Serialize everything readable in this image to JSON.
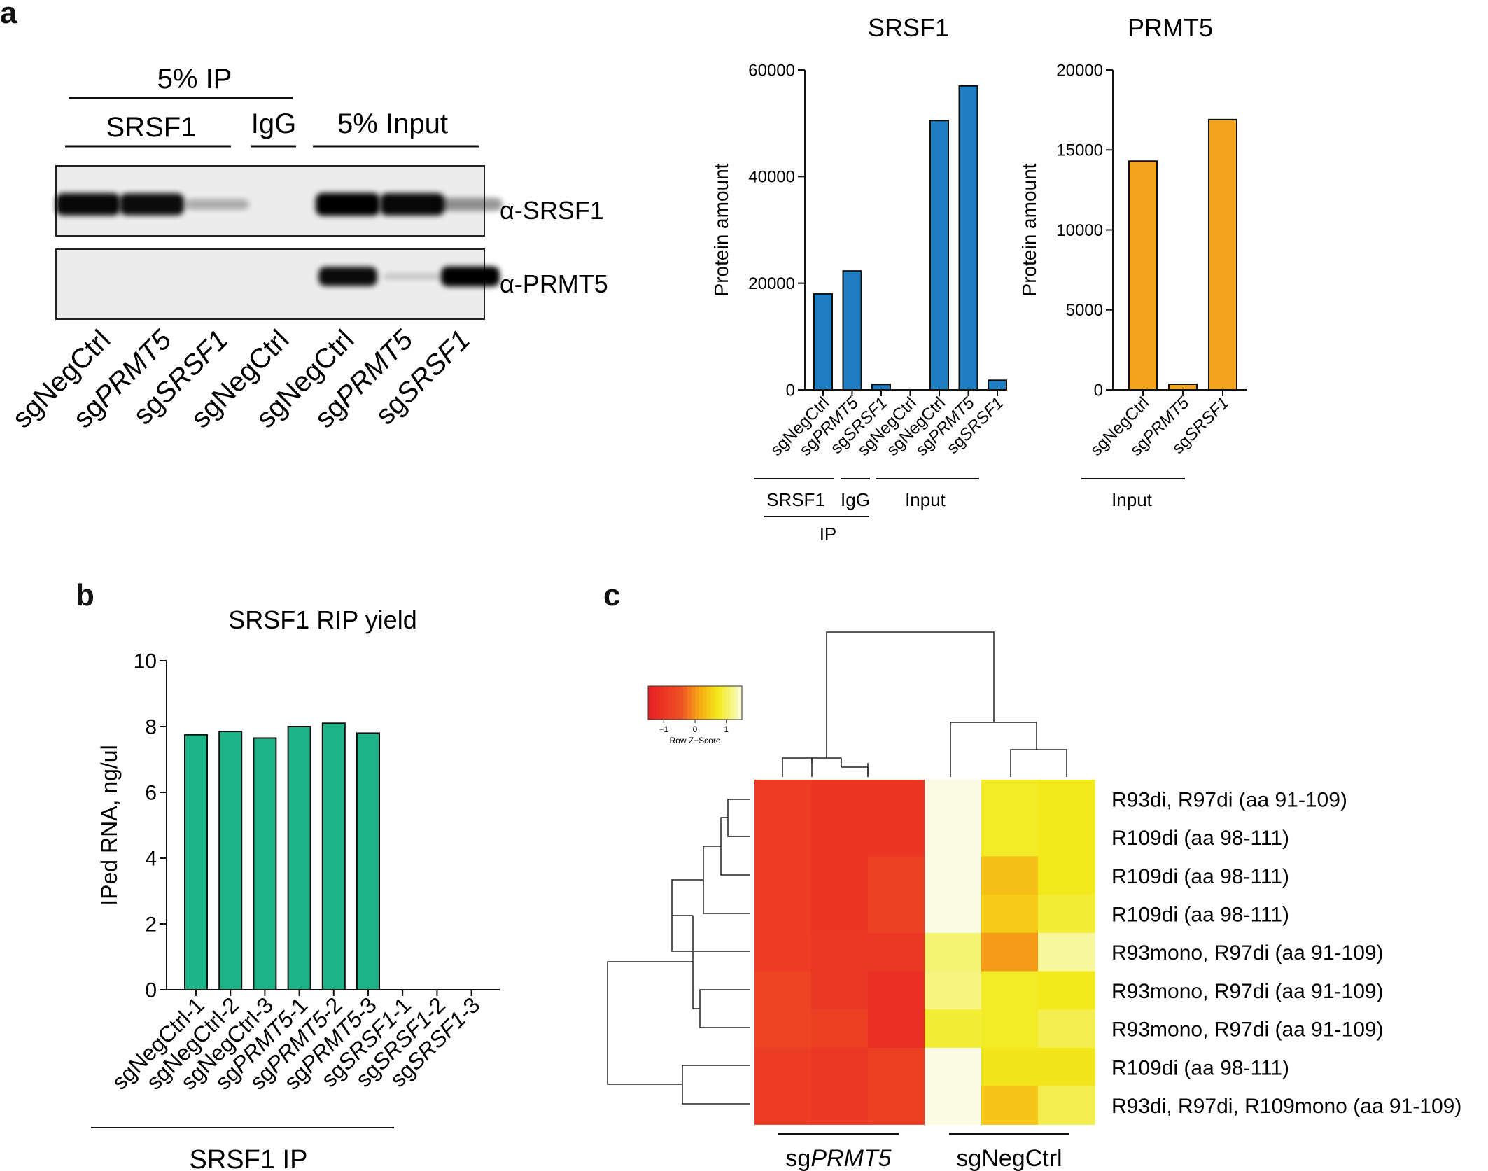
{
  "panels": {
    "a": "a",
    "b": "b",
    "c": "c"
  },
  "blot": {
    "group_ip": "5% IP",
    "group_srsf1": "SRSF1",
    "group_igg": "IgG",
    "group_input": "5% Input",
    "row_labels": [
      "α-SRSF1",
      "α-PRMT5"
    ],
    "lanes": [
      {
        "prefix": "sg",
        "gene": "NegCtrl",
        "italic": false
      },
      {
        "prefix": "sg",
        "gene": "PRMT5",
        "italic": true
      },
      {
        "prefix": "sg",
        "gene": "SRSF1",
        "italic": true
      },
      {
        "prefix": "sg",
        "gene": "NegCtrl",
        "italic": false
      },
      {
        "prefix": "sg",
        "gene": "NegCtrl",
        "italic": false
      },
      {
        "prefix": "sg",
        "gene": "PRMT5",
        "italic": true
      },
      {
        "prefix": "sg",
        "gene": "SRSF1",
        "italic": true
      }
    ],
    "srsf1_band_intensity": [
      0.92,
      0.9,
      0.22,
      0.0,
      0.95,
      0.92,
      0.35
    ],
    "prmt5_band_intensity": [
      0.0,
      0.0,
      0.0,
      0.0,
      0.9,
      0.12,
      0.95
    ]
  },
  "chart_data": [
    {
      "id": "srsf1_quant",
      "type": "bar",
      "title": "SRSF1",
      "ylabel": "Protein amount",
      "ylim": [
        0,
        60000
      ],
      "yticks": [
        0,
        20000,
        40000,
        60000
      ],
      "color": "#1f7ec2",
      "categories": [
        {
          "prefix": "sg",
          "gene": "NegCtrl",
          "italic": false
        },
        {
          "prefix": "sg",
          "gene": "PRMT5",
          "italic": true
        },
        {
          "prefix": "sg",
          "gene": "SRSF1",
          "italic": true
        },
        {
          "prefix": "sg",
          "gene": "NegCtrl",
          "italic": false
        },
        {
          "prefix": "sg",
          "gene": "NegCtrl",
          "italic": false
        },
        {
          "prefix": "sg",
          "gene": "PRMT5",
          "italic": true
        },
        {
          "prefix": "sg",
          "gene": "SRSF1",
          "italic": true
        }
      ],
      "values": [
        18000,
        22300,
        1000,
        0,
        50500,
        57000,
        1800
      ],
      "groups": [
        "SRSF1",
        "IgG",
        "Input",
        "IP"
      ]
    },
    {
      "id": "prmt5_quant",
      "type": "bar",
      "title": "PRMT5",
      "ylabel": "Protein amount",
      "ylim": [
        0,
        20000
      ],
      "yticks": [
        0,
        5000,
        10000,
        15000,
        20000
      ],
      "color": "#f4a31f",
      "categories": [
        {
          "prefix": "sg",
          "gene": "NegCtrl",
          "italic": false
        },
        {
          "prefix": "sg",
          "gene": "PRMT5",
          "italic": true
        },
        {
          "prefix": "sg",
          "gene": "SRSF1",
          "italic": true
        }
      ],
      "values": [
        14300,
        350,
        16900
      ],
      "groups": [
        "Input"
      ]
    },
    {
      "id": "rip_yield",
      "type": "bar",
      "title": "SRSF1 RIP yield",
      "ylabel": "IPed RNA, ng/ul",
      "ylim": [
        0,
        10
      ],
      "yticks": [
        0,
        2,
        4,
        6,
        8,
        10
      ],
      "color": "#1db386",
      "categories": [
        {
          "prefix": "sg",
          "gene": "NegCtrl",
          "italic": false,
          "suffix": "-1"
        },
        {
          "prefix": "sg",
          "gene": "NegCtrl",
          "italic": false,
          "suffix": "-2"
        },
        {
          "prefix": "sg",
          "gene": "NegCtrl",
          "italic": false,
          "suffix": "-3"
        },
        {
          "prefix": "sg",
          "gene": "PRMT5",
          "italic": true,
          "suffix": "-1"
        },
        {
          "prefix": "sg",
          "gene": "PRMT5",
          "italic": true,
          "suffix": "-2"
        },
        {
          "prefix": "sg",
          "gene": "PRMT5",
          "italic": true,
          "suffix": "-3"
        },
        {
          "prefix": "sg",
          "gene": "SRSF1",
          "italic": true,
          "suffix": "-1"
        },
        {
          "prefix": "sg",
          "gene": "SRSF1",
          "italic": true,
          "suffix": "-2"
        },
        {
          "prefix": "sg",
          "gene": "SRSF1",
          "italic": true,
          "suffix": "-3"
        }
      ],
      "values": [
        7.75,
        7.85,
        7.65,
        8.0,
        8.1,
        7.8,
        0,
        0,
        0
      ],
      "group": "SRSF1 IP"
    },
    {
      "id": "heatmap",
      "type": "heatmap",
      "legend_title": "Row Z−Score",
      "legend_ticks": [
        "−1",
        "0",
        "1"
      ],
      "legend_range": [
        -1.5,
        1.5
      ],
      "rows": [
        "R93di, R97di (aa 91-109)",
        "R109di (aa 98-111)",
        "R109di (aa 98-111)",
        "R109di (aa 98-111)",
        "R93mono, R97di (aa 91-109)",
        "R93mono, R97di (aa 91-109)",
        "R93mono, R97di (aa 91-109)",
        "R109di (aa 98-111)",
        "R93di, R97di, R109mono (aa 91-109)"
      ],
      "column_groups": [
        {
          "prefix": "sg",
          "gene": "PRMT5",
          "italic": true
        },
        {
          "prefix": "sg",
          "gene": "NegCtrl",
          "italic": false
        }
      ],
      "values": [
        [
          -0.85,
          -1.0,
          -1.0,
          1.5,
          0.8,
          0.75
        ],
        [
          -0.85,
          -1.0,
          -1.0,
          1.5,
          0.8,
          0.75
        ],
        [
          -0.85,
          -1.0,
          -0.75,
          1.5,
          0.35,
          0.75
        ],
        [
          -0.85,
          -1.0,
          -0.75,
          1.5,
          0.45,
          0.85
        ],
        [
          -0.85,
          -0.95,
          -0.95,
          1.1,
          0.05,
          1.25
        ],
        [
          -0.7,
          -0.95,
          -1.15,
          1.15,
          0.8,
          0.75
        ],
        [
          -0.7,
          -0.8,
          -1.15,
          0.85,
          0.8,
          0.95
        ],
        [
          -0.85,
          -0.95,
          -0.8,
          1.5,
          0.7,
          0.7
        ],
        [
          -0.85,
          -0.95,
          -0.8,
          1.5,
          0.4,
          0.95
        ]
      ]
    }
  ]
}
